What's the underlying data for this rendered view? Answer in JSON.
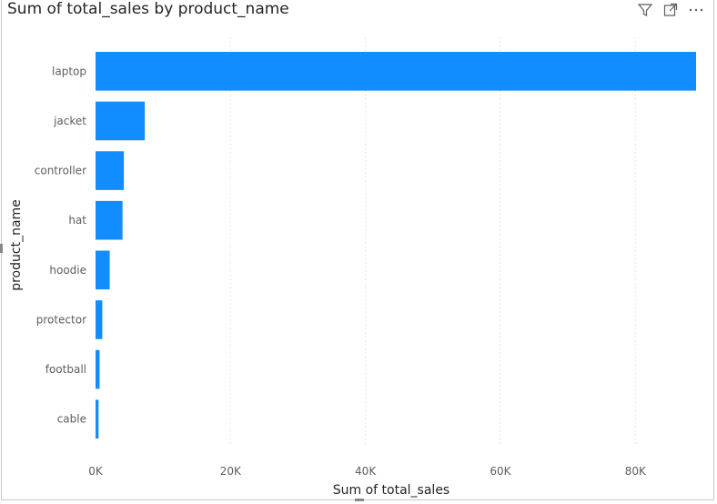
{
  "visual": {
    "title": "Sum of total_sales by product_name",
    "icons": [
      "filter-icon",
      "focus-mode-icon",
      "more-options-icon"
    ]
  },
  "chart_data": {
    "type": "bar",
    "orientation": "horizontal",
    "title": "Sum of total_sales by product_name",
    "xlabel": "Sum of total_sales",
    "ylabel": "product_name",
    "categories": [
      "laptop",
      "jacket",
      "controller",
      "hat",
      "hoodie",
      "protector",
      "football",
      "cable"
    ],
    "values": [
      89000,
      7300,
      4200,
      4000,
      2100,
      1000,
      600,
      450
    ],
    "xlim": [
      0,
      89000
    ],
    "x_ticks": [
      0,
      20000,
      40000,
      60000,
      80000
    ],
    "x_tick_labels": [
      "0K",
      "20K",
      "40K",
      "60K",
      "80K"
    ],
    "grid": "vertical-dotted",
    "bar_color": "#118DFF",
    "grid_color": "#e1dfdd"
  }
}
